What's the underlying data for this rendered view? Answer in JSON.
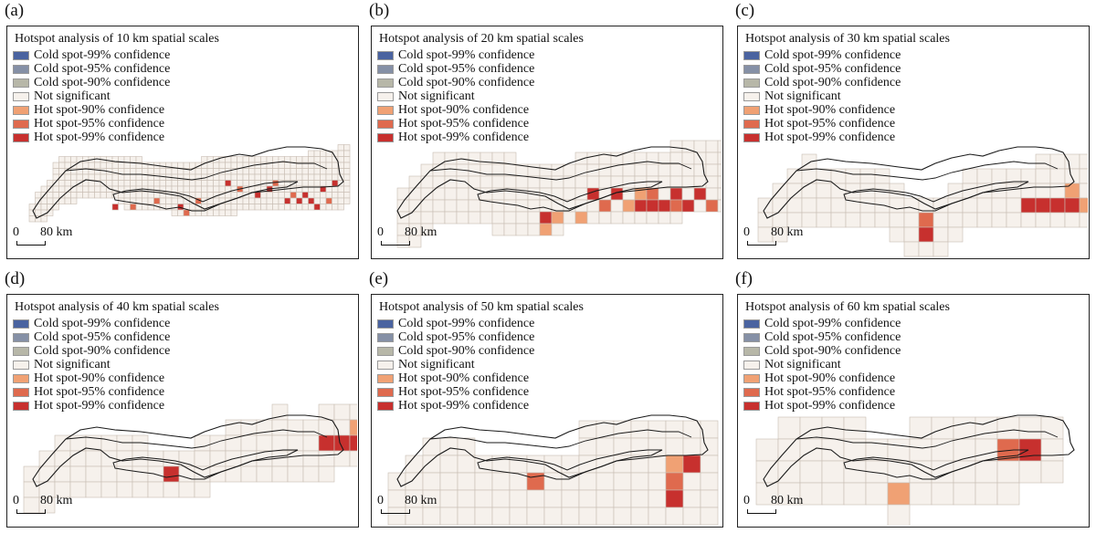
{
  "legend_items": [
    {
      "label": "Cold spot-99% confidence",
      "color": "#4a63a0"
    },
    {
      "label": "Cold spot-95% confidence",
      "color": "#8590a6"
    },
    {
      "label": "Cold spot-90% confidence",
      "color": "#b7b7a8"
    },
    {
      "label": "Not significant",
      "color": "#f6f1ec"
    },
    {
      "label": "Hot spot-90% confidence",
      "color": "#f0a174"
    },
    {
      "label": "Hot spot-95% confidence",
      "color": "#df6a4e"
    },
    {
      "label": "Hot spot-99% confidence",
      "color": "#c7302e"
    }
  ],
  "scale": {
    "zero": "0",
    "distance": "80 km"
  },
  "panels": [
    {
      "id": "a",
      "label": "(a)",
      "title": "Hotspot analysis of 10 km spatial scales",
      "scale_km": 10
    },
    {
      "id": "b",
      "label": "(b)",
      "title": "Hotspot analysis of 20 km spatial scales",
      "scale_km": 20
    },
    {
      "id": "c",
      "label": "(c)",
      "title": "Hotspot analysis of 30 km spatial scales",
      "scale_km": 30
    },
    {
      "id": "d",
      "label": "(d)",
      "title": "Hotspot analysis of 40 km spatial scales",
      "scale_km": 40
    },
    {
      "id": "e",
      "label": "(e)",
      "title": "Hotspot analysis of 50 km spatial scales",
      "scale_km": 50
    },
    {
      "id": "f",
      "label": "(f)",
      "title": "Hotspot analysis of 60 km spatial scales",
      "scale_km": 60
    }
  ],
  "colors": {
    "grid_stroke": "#c9bdb3",
    "boundary": "#1a1a1a",
    "frame": "#222222"
  }
}
